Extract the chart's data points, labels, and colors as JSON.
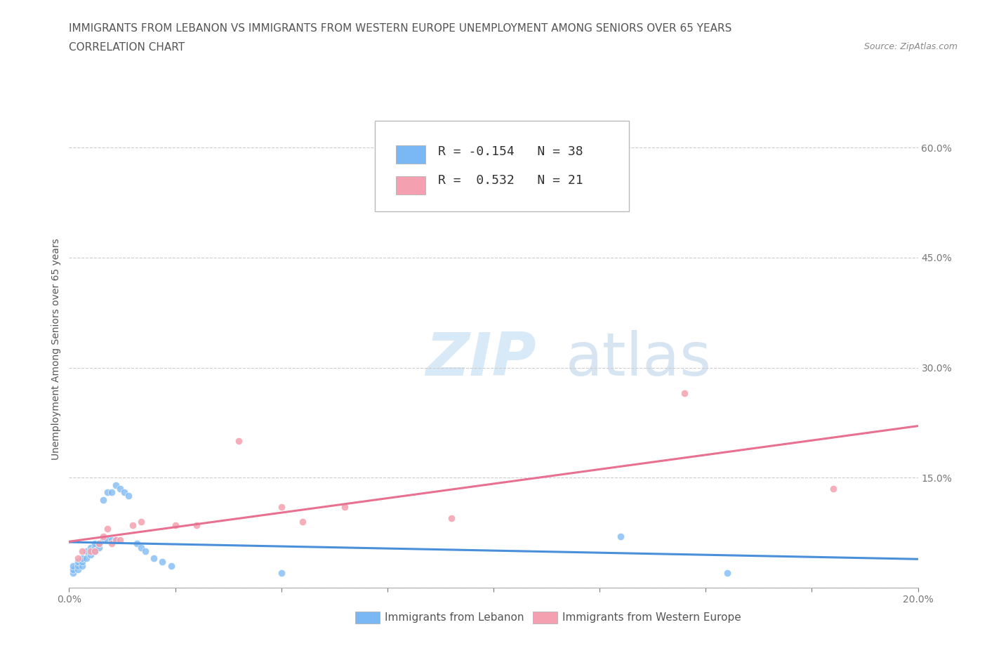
{
  "title_line1": "IMMIGRANTS FROM LEBANON VS IMMIGRANTS FROM WESTERN EUROPE UNEMPLOYMENT AMONG SENIORS OVER 65 YEARS",
  "title_line2": "CORRELATION CHART",
  "source": "Source: ZipAtlas.com",
  "ylabel": "Unemployment Among Seniors over 65 years",
  "xlim": [
    0.0,
    0.2
  ],
  "ylim": [
    0.0,
    0.65
  ],
  "x_ticks": [
    0.0,
    0.025,
    0.05,
    0.075,
    0.1,
    0.125,
    0.15,
    0.175,
    0.2
  ],
  "y_ticks": [
    0.0,
    0.15,
    0.3,
    0.45,
    0.6
  ],
  "grid_color": "#cccccc",
  "background_color": "#ffffff",
  "watermark_zip": "ZIP",
  "watermark_atlas": "atlas",
  "lebanon_color": "#7ab8f5",
  "western_europe_color": "#f5a0b0",
  "lebanon_line_color": "#4a90d9",
  "western_europe_line_color": "#e87090",
  "lebanon_R": -0.154,
  "lebanon_N": 38,
  "western_europe_R": 0.532,
  "western_europe_N": 21,
  "lebanon_x": [
    0.001,
    0.001,
    0.001,
    0.002,
    0.002,
    0.002,
    0.003,
    0.003,
    0.003,
    0.004,
    0.004,
    0.005,
    0.005,
    0.006,
    0.006,
    0.006,
    0.007,
    0.007,
    0.008,
    0.008,
    0.009,
    0.009,
    0.01,
    0.01,
    0.011,
    0.011,
    0.012,
    0.013,
    0.014,
    0.016,
    0.017,
    0.018,
    0.02,
    0.022,
    0.024,
    0.05,
    0.13,
    0.155
  ],
  "lebanon_y": [
    0.02,
    0.025,
    0.03,
    0.025,
    0.03,
    0.035,
    0.03,
    0.035,
    0.04,
    0.04,
    0.05,
    0.045,
    0.055,
    0.05,
    0.055,
    0.06,
    0.055,
    0.06,
    0.065,
    0.12,
    0.065,
    0.13,
    0.065,
    0.13,
    0.065,
    0.14,
    0.135,
    0.13,
    0.125,
    0.06,
    0.055,
    0.05,
    0.04,
    0.035,
    0.03,
    0.02,
    0.07,
    0.02
  ],
  "western_europe_x": [
    0.002,
    0.003,
    0.005,
    0.006,
    0.007,
    0.008,
    0.009,
    0.01,
    0.011,
    0.012,
    0.015,
    0.017,
    0.025,
    0.03,
    0.04,
    0.05,
    0.055,
    0.065,
    0.09,
    0.145,
    0.18
  ],
  "western_europe_y": [
    0.04,
    0.05,
    0.05,
    0.05,
    0.06,
    0.07,
    0.08,
    0.06,
    0.065,
    0.065,
    0.085,
    0.09,
    0.085,
    0.085,
    0.2,
    0.11,
    0.09,
    0.11,
    0.095,
    0.265,
    0.135
  ],
  "legend_label_lebanon": "Immigrants from Lebanon",
  "legend_label_western": "Immigrants from Western Europe",
  "title_fontsize": 11,
  "subtitle_fontsize": 11,
  "axis_label_fontsize": 10,
  "tick_fontsize": 10
}
